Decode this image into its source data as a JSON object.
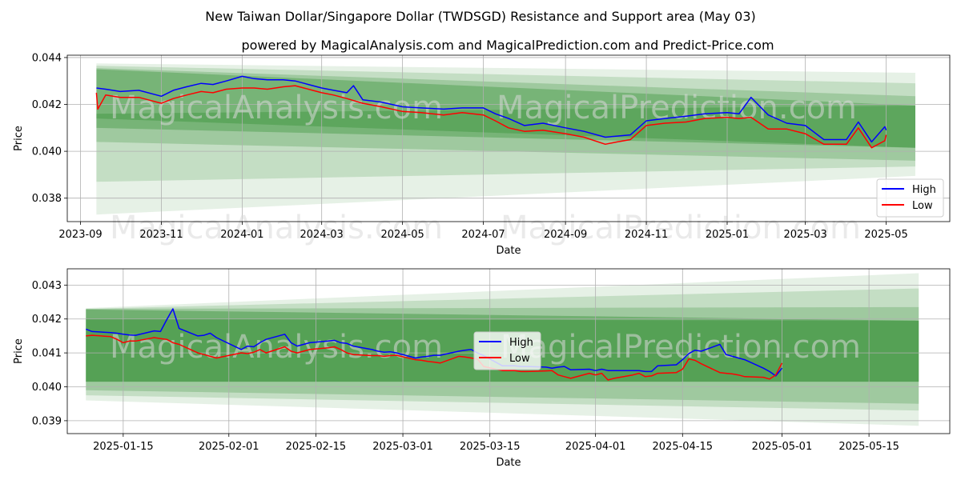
{
  "figure": {
    "title": "New Taiwan Dollar/Singapore Dollar (TWDSGD) Resistance and Support area (May 03)",
    "subtitle": "powered by MagicalAnalysis.com and MagicalPrediction.com and Predict-Price.com",
    "watermarks": [
      "MagicalAnalysis.com",
      "MagicalPrediction.com"
    ]
  },
  "colors": {
    "high": "#0000ff",
    "low": "#ff0000",
    "band": "#2e8b2e",
    "grid": "#b0b0b0",
    "watermark": "#d9d9d9"
  },
  "chart_data": [
    {
      "type": "line",
      "xlabel": "Date",
      "ylabel": "Price",
      "grid": true,
      "legend": "lower-right",
      "xlim": [
        "2023-08-22",
        "2025-06-18"
      ],
      "ylim": [
        0.037,
        0.0441
      ],
      "x_ticks": [
        "2023-09-01",
        "2023-11-01",
        "2024-01-01",
        "2024-03-01",
        "2024-05-01",
        "2024-07-01",
        "2024-09-01",
        "2024-11-01",
        "2025-01-01",
        "2025-03-01",
        "2025-05-01"
      ],
      "x_tick_labels": [
        "2023-09",
        "2023-11",
        "2024-01",
        "2024-03",
        "2024-05",
        "2024-07",
        "2024-09",
        "2024-11",
        "2025-01",
        "2025-03",
        "2025-05"
      ],
      "y_ticks": [
        0.038,
        0.04,
        0.042,
        0.044
      ],
      "y_tick_labels": [
        "0.038",
        "0.040",
        "0.042",
        "0.044"
      ],
      "bands": [
        {
          "x": [
            "2023-09-13",
            "2025-05-23"
          ],
          "top": [
            0.04375,
            0.04335
          ],
          "bottom": [
            0.0373,
            0.03895
          ],
          "alpha": 0.12
        },
        {
          "x": [
            "2023-09-13",
            "2025-05-23"
          ],
          "top": [
            0.04365,
            0.0429
          ],
          "bottom": [
            0.0387,
            0.03935
          ],
          "alpha": 0.18
        },
        {
          "x": [
            "2023-09-13",
            "2025-05-23"
          ],
          "top": [
            0.04355,
            0.04235
          ],
          "bottom": [
            0.0404,
            0.0396
          ],
          "alpha": 0.25
        },
        {
          "x": [
            "2023-09-13",
            "2025-05-23"
          ],
          "top": [
            0.0435,
            0.04195
          ],
          "bottom": [
            0.041,
            0.04015
          ],
          "alpha": 0.35
        },
        {
          "x": [
            "2023-09-13",
            "2025-05-23"
          ],
          "top": [
            0.0416,
            0.04195
          ],
          "bottom": [
            0.0414,
            0.04015
          ],
          "alpha": 0.35
        }
      ],
      "series": [
        {
          "name": "High",
          "x": [
            "2023-09-13",
            "2023-09-20",
            "2023-10-01",
            "2023-10-15",
            "2023-11-01",
            "2023-11-10",
            "2023-11-20",
            "2023-12-01",
            "2023-12-10",
            "2023-12-20",
            "2024-01-01",
            "2024-01-10",
            "2024-01-20",
            "2024-02-01",
            "2024-02-10",
            "2024-02-20",
            "2024-03-01",
            "2024-03-10",
            "2024-03-20",
            "2024-03-25",
            "2024-04-01",
            "2024-04-15",
            "2024-05-01",
            "2024-05-15",
            "2024-06-01",
            "2024-06-15",
            "2024-07-01",
            "2024-07-10",
            "2024-07-20",
            "2024-08-01",
            "2024-08-15",
            "2024-09-01",
            "2024-09-15",
            "2024-10-01",
            "2024-10-10",
            "2024-10-20",
            "2024-11-01",
            "2024-11-15",
            "2024-12-01",
            "2024-12-15",
            "2025-01-01",
            "2025-01-10",
            "2025-01-19",
            "2025-02-01",
            "2025-02-15",
            "2025-03-01",
            "2025-03-15",
            "2025-04-01",
            "2025-04-10",
            "2025-04-20",
            "2025-04-30",
            "2025-05-01"
          ],
          "y": [
            0.0427,
            0.04265,
            0.04255,
            0.0426,
            0.04235,
            0.0426,
            0.04275,
            0.0429,
            0.04285,
            0.043,
            0.0432,
            0.0431,
            0.04305,
            0.04305,
            0.043,
            0.04285,
            0.0427,
            0.0426,
            0.0425,
            0.0428,
            0.0422,
            0.0421,
            0.0419,
            0.04185,
            0.0418,
            0.04185,
            0.04185,
            0.0416,
            0.0414,
            0.0411,
            0.0412,
            0.041,
            0.04085,
            0.0406,
            0.04065,
            0.0407,
            0.0413,
            0.0414,
            0.0415,
            0.0416,
            0.04165,
            0.0416,
            0.0423,
            0.04155,
            0.0412,
            0.0411,
            0.0405,
            0.0405,
            0.04125,
            0.0404,
            0.04105,
            0.0409
          ]
        },
        {
          "name": "Low",
          "x": [
            "2023-09-13",
            "2023-09-14",
            "2023-09-20",
            "2023-10-01",
            "2023-10-15",
            "2023-11-01",
            "2023-11-10",
            "2023-11-20",
            "2023-12-01",
            "2023-12-10",
            "2023-12-20",
            "2024-01-01",
            "2024-01-10",
            "2024-01-20",
            "2024-02-01",
            "2024-02-10",
            "2024-02-20",
            "2024-03-01",
            "2024-03-10",
            "2024-03-20",
            "2024-04-01",
            "2024-04-15",
            "2024-05-01",
            "2024-05-15",
            "2024-06-01",
            "2024-06-15",
            "2024-07-01",
            "2024-07-10",
            "2024-07-20",
            "2024-08-01",
            "2024-08-15",
            "2024-09-01",
            "2024-09-15",
            "2024-10-01",
            "2024-10-10",
            "2024-10-20",
            "2024-11-01",
            "2024-11-15",
            "2024-12-01",
            "2024-12-15",
            "2025-01-01",
            "2025-01-10",
            "2025-01-19",
            "2025-02-01",
            "2025-02-15",
            "2025-03-01",
            "2025-03-15",
            "2025-04-01",
            "2025-04-10",
            "2025-04-20",
            "2025-04-30",
            "2025-05-01"
          ],
          "y": [
            0.0425,
            0.0418,
            0.0424,
            0.0423,
            0.0423,
            0.04205,
            0.04225,
            0.0424,
            0.04255,
            0.0425,
            0.04265,
            0.0427,
            0.0427,
            0.04265,
            0.04275,
            0.0428,
            0.04265,
            0.0425,
            0.0424,
            0.04225,
            0.04205,
            0.0419,
            0.0417,
            0.04165,
            0.04155,
            0.04165,
            0.04155,
            0.0413,
            0.041,
            0.04085,
            0.0409,
            0.04075,
            0.0406,
            0.0403,
            0.0404,
            0.0405,
            0.0411,
            0.0412,
            0.04125,
            0.0414,
            0.04145,
            0.0414,
            0.04145,
            0.04095,
            0.04095,
            0.04075,
            0.0403,
            0.0403,
            0.041,
            0.04015,
            0.04045,
            0.0407
          ]
        }
      ]
    },
    {
      "type": "line",
      "xlabel": "Date",
      "ylabel": "Price",
      "grid": true,
      "legend": "center",
      "xlim": [
        "2025-01-06",
        "2025-05-28"
      ],
      "ylim": [
        0.03862,
        0.04348
      ],
      "x_ticks": [
        "2025-01-15",
        "2025-02-01",
        "2025-02-15",
        "2025-03-01",
        "2025-03-15",
        "2025-04-01",
        "2025-04-15",
        "2025-05-01",
        "2025-05-15"
      ],
      "x_tick_labels": [
        "2025-01-15",
        "2025-02-01",
        "2025-02-15",
        "2025-03-01",
        "2025-03-15",
        "2025-04-01",
        "2025-04-15",
        "2025-05-01",
        "2025-05-15"
      ],
      "y_ticks": [
        0.039,
        0.04,
        0.041,
        0.042,
        0.043
      ],
      "y_tick_labels": [
        "0.039",
        "0.040",
        "0.041",
        "0.042",
        "0.043"
      ],
      "bands": [
        {
          "x": [
            "2025-01-09",
            "2025-05-23"
          ],
          "top": [
            0.04232,
            0.04335
          ],
          "bottom": [
            0.0396,
            0.03885
          ],
          "alpha": 0.12
        },
        {
          "x": [
            "2025-01-09",
            "2025-05-23"
          ],
          "top": [
            0.0423,
            0.0429
          ],
          "bottom": [
            0.03975,
            0.0393
          ],
          "alpha": 0.18
        },
        {
          "x": [
            "2025-01-09",
            "2025-05-23"
          ],
          "top": [
            0.0423,
            0.04235
          ],
          "bottom": [
            0.0399,
            0.0395
          ],
          "alpha": 0.25
        },
        {
          "x": [
            "2025-01-09",
            "2025-05-23"
          ],
          "top": [
            0.04228,
            0.04195
          ],
          "bottom": [
            0.04015,
            0.04015
          ],
          "alpha": 0.4
        },
        {
          "x": [
            "2025-01-09",
            "2025-05-23"
          ],
          "top": [
            0.042,
            0.04195
          ],
          "bottom": [
            0.04015,
            0.04015
          ],
          "alpha": 0.4
        }
      ],
      "series": [
        {
          "name": "High",
          "x": [
            "2025-01-09",
            "2025-01-10",
            "2025-01-13",
            "2025-01-14",
            "2025-01-15",
            "2025-01-16",
            "2025-01-17",
            "2025-01-20",
            "2025-01-21",
            "2025-01-22",
            "2025-01-23",
            "2025-01-24",
            "2025-01-27",
            "2025-01-28",
            "2025-01-29",
            "2025-01-30",
            "2025-02-03",
            "2025-02-04",
            "2025-02-05",
            "2025-02-06",
            "2025-02-07",
            "2025-02-10",
            "2025-02-11",
            "2025-02-12",
            "2025-02-13",
            "2025-02-14",
            "2025-02-17",
            "2025-02-18",
            "2025-02-19",
            "2025-02-20",
            "2025-02-21",
            "2025-02-24",
            "2025-02-25",
            "2025-02-26",
            "2025-02-27",
            "2025-02-28",
            "2025-03-03",
            "2025-03-04",
            "2025-03-05",
            "2025-03-06",
            "2025-03-07",
            "2025-03-10",
            "2025-03-11",
            "2025-03-12",
            "2025-03-13",
            "2025-03-14",
            "2025-03-17",
            "2025-03-18",
            "2025-03-19",
            "2025-03-20",
            "2025-03-21",
            "2025-03-24",
            "2025-03-25",
            "2025-03-26",
            "2025-03-27",
            "2025-03-28",
            "2025-03-31",
            "2025-04-01",
            "2025-04-02",
            "2025-04-03",
            "2025-04-04",
            "2025-04-07",
            "2025-04-08",
            "2025-04-09",
            "2025-04-10",
            "2025-04-11",
            "2025-04-14",
            "2025-04-15",
            "2025-04-16",
            "2025-04-17",
            "2025-04-18",
            "2025-04-21",
            "2025-04-22",
            "2025-04-23",
            "2025-04-24",
            "2025-04-25",
            "2025-04-28",
            "2025-04-29",
            "2025-04-30",
            "2025-05-01"
          ],
          "y": [
            0.0417,
            0.04163,
            0.0416,
            0.04158,
            0.04155,
            0.04153,
            0.04152,
            0.04165,
            0.04163,
            0.04198,
            0.0423,
            0.04172,
            0.0415,
            0.04152,
            0.04158,
            0.04145,
            0.0411,
            0.0412,
            0.04118,
            0.0413,
            0.0414,
            0.04155,
            0.0413,
            0.0412,
            0.04125,
            0.0413,
            0.04135,
            0.04137,
            0.0413,
            0.04128,
            0.0412,
            0.0411,
            0.04105,
            0.04102,
            0.04103,
            0.041,
            0.04085,
            0.04088,
            0.0409,
            0.04093,
            0.04093,
            0.04105,
            0.04108,
            0.0411,
            0.041,
            0.04092,
            0.04062,
            0.04062,
            0.04062,
            0.0406,
            0.0406,
            0.04058,
            0.04055,
            0.04058,
            0.0406,
            0.0405,
            0.04052,
            0.04048,
            0.04052,
            0.04048,
            0.04048,
            0.04048,
            0.04048,
            0.04045,
            0.04045,
            0.04062,
            0.04065,
            0.0408,
            0.04098,
            0.04108,
            0.04105,
            0.04125,
            0.04095,
            0.0409,
            0.04085,
            0.0408,
            0.04055,
            0.04045,
            0.04032,
            0.04055
          ]
        },
        {
          "name": "Low",
          "x": [
            "2025-01-09",
            "2025-01-10",
            "2025-01-13",
            "2025-01-14",
            "2025-01-15",
            "2025-01-16",
            "2025-01-17",
            "2025-01-20",
            "2025-01-21",
            "2025-01-22",
            "2025-01-23",
            "2025-01-24",
            "2025-01-27",
            "2025-01-28",
            "2025-01-29",
            "2025-01-30",
            "2025-02-03",
            "2025-02-04",
            "2025-02-05",
            "2025-02-06",
            "2025-02-07",
            "2025-02-10",
            "2025-02-11",
            "2025-02-12",
            "2025-02-13",
            "2025-02-14",
            "2025-02-17",
            "2025-02-18",
            "2025-02-19",
            "2025-02-20",
            "2025-02-21",
            "2025-02-24",
            "2025-02-25",
            "2025-02-26",
            "2025-02-27",
            "2025-02-28",
            "2025-03-03",
            "2025-03-04",
            "2025-03-05",
            "2025-03-06",
            "2025-03-07",
            "2025-03-10",
            "2025-03-11",
            "2025-03-12",
            "2025-03-13",
            "2025-03-14",
            "2025-03-17",
            "2025-03-18",
            "2025-03-19",
            "2025-03-20",
            "2025-03-21",
            "2025-03-24",
            "2025-03-25",
            "2025-03-26",
            "2025-03-27",
            "2025-03-28",
            "2025-03-31",
            "2025-04-01",
            "2025-04-02",
            "2025-04-03",
            "2025-04-04",
            "2025-04-07",
            "2025-04-08",
            "2025-04-09",
            "2025-04-10",
            "2025-04-11",
            "2025-04-14",
            "2025-04-15",
            "2025-04-16",
            "2025-04-17",
            "2025-04-18",
            "2025-04-21",
            "2025-04-22",
            "2025-04-23",
            "2025-04-24",
            "2025-04-25",
            "2025-04-28",
            "2025-04-29",
            "2025-04-30",
            "2025-05-01"
          ],
          "y": [
            0.0415,
            0.04152,
            0.04148,
            0.0414,
            0.0413,
            0.04135,
            0.04135,
            0.04145,
            0.04142,
            0.0414,
            0.0413,
            0.04125,
            0.041,
            0.04095,
            0.0409,
            0.04085,
            0.041,
            0.04098,
            0.04102,
            0.0411,
            0.041,
            0.04118,
            0.04105,
            0.041,
            0.04105,
            0.0411,
            0.04115,
            0.04118,
            0.0411,
            0.041,
            0.04095,
            0.04092,
            0.04092,
            0.0409,
            0.04092,
            0.04093,
            0.0408,
            0.04078,
            0.04075,
            0.04073,
            0.0407,
            0.0409,
            0.04088,
            0.04085,
            0.04082,
            0.0406,
            0.04048,
            0.04048,
            0.04048,
            0.04045,
            0.04045,
            0.04047,
            0.04048,
            0.04035,
            0.0403,
            0.04025,
            0.0404,
            0.04035,
            0.0404,
            0.0402,
            0.04025,
            0.04035,
            0.0404,
            0.0403,
            0.04032,
            0.0404,
            0.04042,
            0.04052,
            0.04082,
            0.04078,
            0.04068,
            0.04042,
            0.0404,
            0.04038,
            0.04035,
            0.0403,
            0.04028,
            0.04023,
            0.04035,
            0.0407
          ]
        }
      ]
    }
  ]
}
